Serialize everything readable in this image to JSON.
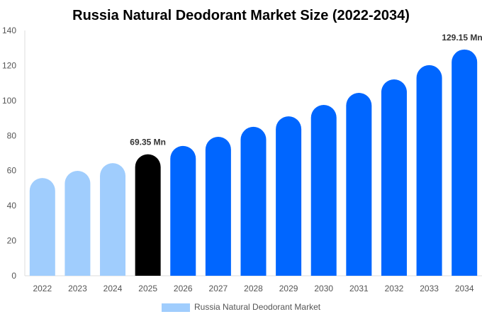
{
  "chart_data": {
    "type": "bar",
    "title": "Russia Natural Deodorant Market Size (2022-2034)",
    "xlabel": "",
    "ylabel": "",
    "ylim": [
      0,
      140
    ],
    "yticks": [
      0,
      20,
      40,
      60,
      80,
      100,
      120,
      140
    ],
    "grid": false,
    "legend_placement": "bottom",
    "categories": [
      "2022",
      "2023",
      "2024",
      "2025",
      "2026",
      "2027",
      "2028",
      "2029",
      "2030",
      "2031",
      "2032",
      "2033",
      "2034"
    ],
    "series": [
      {
        "name": "Russia Natural Deodorant Market",
        "values": [
          55.8,
          59.9,
          64.3,
          69.35,
          74.1,
          79.3,
          85.0,
          91.0,
          97.5,
          104.4,
          112.1,
          120.2,
          129.15
        ]
      }
    ],
    "data_labels": [
      {
        "category": "2025",
        "text": "69.35 Mn"
      },
      {
        "category": "2034",
        "text": "129.15 Mn"
      }
    ],
    "colors": {
      "historical": "#a0cdfd",
      "base_year": "#000000",
      "forecast": "#0066ff",
      "legend": "#a0cdfd"
    }
  }
}
